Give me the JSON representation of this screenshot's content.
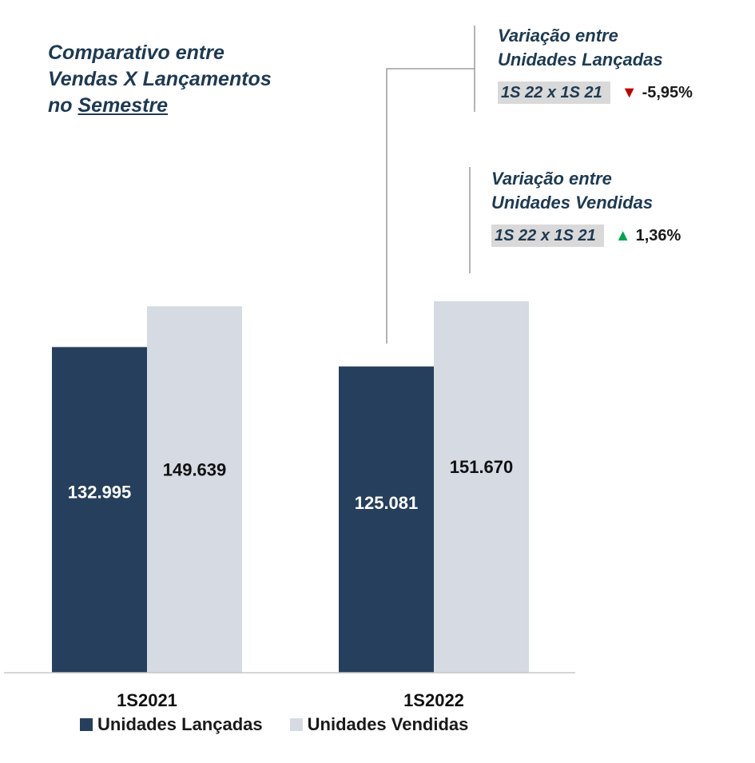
{
  "title": {
    "line1": "Comparativo entre",
    "line2": "Vendas X Lançamentos",
    "line3_prefix": "no ",
    "line3_underlined": "Semestre"
  },
  "callouts": {
    "launched": {
      "line1": "Variação entre",
      "line2": "Unidades Lançadas",
      "period": "1S 22 x 1S 21",
      "direction": "down",
      "change": "-5,95%"
    },
    "sold": {
      "line1": "Variação entre",
      "line2": "Unidades Vendidas",
      "period": "1S 22 x 1S 21",
      "direction": "up",
      "change": "1,36%"
    }
  },
  "colors": {
    "launched": "#263f5c",
    "sold": "#d5dae3",
    "text_dark": "#1e3a52",
    "down_arrow": "#c00000",
    "up_arrow": "#00a550"
  },
  "chart_data": {
    "type": "bar",
    "categories": [
      "1S2021",
      "1S2022"
    ],
    "series": [
      {
        "name": "Unidades Lançadas",
        "values": [
          132995,
          125081
        ],
        "labels": [
          "132.995",
          "125.081"
        ]
      },
      {
        "name": "Unidades Vendidas",
        "values": [
          149639,
          151670
        ],
        "labels": [
          "149.639",
          "151.670"
        ]
      }
    ],
    "ylim": [
      0,
      200000
    ],
    "grid": false,
    "legend": "bottom"
  }
}
